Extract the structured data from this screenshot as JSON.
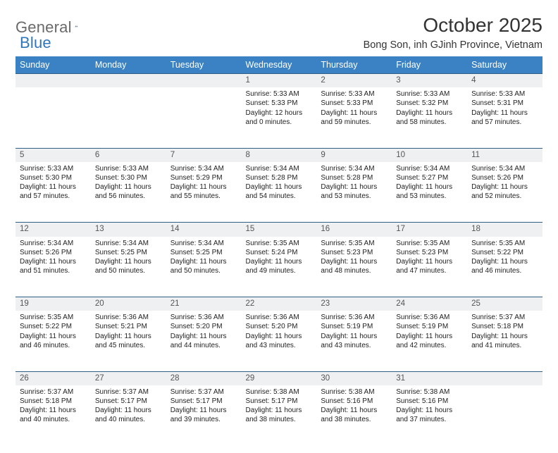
{
  "brand": {
    "name1": "General",
    "name2": "Blue"
  },
  "title": "October 2025",
  "location": "Bong Son, inh GJinh Province, Vietnam",
  "colors": {
    "header_bg": "#3b82c4",
    "header_text": "#ffffff",
    "daynum_bg": "#eef0f1",
    "daynum_border": "#2f5e86",
    "logo_gray": "#6a6a6a",
    "logo_blue": "#2f76bb"
  },
  "dayHeaders": [
    "Sunday",
    "Monday",
    "Tuesday",
    "Wednesday",
    "Thursday",
    "Friday",
    "Saturday"
  ],
  "weeks": [
    {
      "nums": [
        "",
        "",
        "",
        "1",
        "2",
        "3",
        "4"
      ],
      "cells": [
        {
          "lines": []
        },
        {
          "lines": []
        },
        {
          "lines": []
        },
        {
          "lines": [
            "Sunrise: 5:33 AM",
            "Sunset: 5:33 PM",
            "Daylight: 12 hours",
            "and 0 minutes."
          ]
        },
        {
          "lines": [
            "Sunrise: 5:33 AM",
            "Sunset: 5:33 PM",
            "Daylight: 11 hours",
            "and 59 minutes."
          ]
        },
        {
          "lines": [
            "Sunrise: 5:33 AM",
            "Sunset: 5:32 PM",
            "Daylight: 11 hours",
            "and 58 minutes."
          ]
        },
        {
          "lines": [
            "Sunrise: 5:33 AM",
            "Sunset: 5:31 PM",
            "Daylight: 11 hours",
            "and 57 minutes."
          ]
        }
      ]
    },
    {
      "nums": [
        "5",
        "6",
        "7",
        "8",
        "9",
        "10",
        "11"
      ],
      "cells": [
        {
          "lines": [
            "Sunrise: 5:33 AM",
            "Sunset: 5:30 PM",
            "Daylight: 11 hours",
            "and 57 minutes."
          ]
        },
        {
          "lines": [
            "Sunrise: 5:33 AM",
            "Sunset: 5:30 PM",
            "Daylight: 11 hours",
            "and 56 minutes."
          ]
        },
        {
          "lines": [
            "Sunrise: 5:34 AM",
            "Sunset: 5:29 PM",
            "Daylight: 11 hours",
            "and 55 minutes."
          ]
        },
        {
          "lines": [
            "Sunrise: 5:34 AM",
            "Sunset: 5:28 PM",
            "Daylight: 11 hours",
            "and 54 minutes."
          ]
        },
        {
          "lines": [
            "Sunrise: 5:34 AM",
            "Sunset: 5:28 PM",
            "Daylight: 11 hours",
            "and 53 minutes."
          ]
        },
        {
          "lines": [
            "Sunrise: 5:34 AM",
            "Sunset: 5:27 PM",
            "Daylight: 11 hours",
            "and 53 minutes."
          ]
        },
        {
          "lines": [
            "Sunrise: 5:34 AM",
            "Sunset: 5:26 PM",
            "Daylight: 11 hours",
            "and 52 minutes."
          ]
        }
      ]
    },
    {
      "nums": [
        "12",
        "13",
        "14",
        "15",
        "16",
        "17",
        "18"
      ],
      "cells": [
        {
          "lines": [
            "Sunrise: 5:34 AM",
            "Sunset: 5:26 PM",
            "Daylight: 11 hours",
            "and 51 minutes."
          ]
        },
        {
          "lines": [
            "Sunrise: 5:34 AM",
            "Sunset: 5:25 PM",
            "Daylight: 11 hours",
            "and 50 minutes."
          ]
        },
        {
          "lines": [
            "Sunrise: 5:34 AM",
            "Sunset: 5:25 PM",
            "Daylight: 11 hours",
            "and 50 minutes."
          ]
        },
        {
          "lines": [
            "Sunrise: 5:35 AM",
            "Sunset: 5:24 PM",
            "Daylight: 11 hours",
            "and 49 minutes."
          ]
        },
        {
          "lines": [
            "Sunrise: 5:35 AM",
            "Sunset: 5:23 PM",
            "Daylight: 11 hours",
            "and 48 minutes."
          ]
        },
        {
          "lines": [
            "Sunrise: 5:35 AM",
            "Sunset: 5:23 PM",
            "Daylight: 11 hours",
            "and 47 minutes."
          ]
        },
        {
          "lines": [
            "Sunrise: 5:35 AM",
            "Sunset: 5:22 PM",
            "Daylight: 11 hours",
            "and 46 minutes."
          ]
        }
      ]
    },
    {
      "nums": [
        "19",
        "20",
        "21",
        "22",
        "23",
        "24",
        "25"
      ],
      "cells": [
        {
          "lines": [
            "Sunrise: 5:35 AM",
            "Sunset: 5:22 PM",
            "Daylight: 11 hours",
            "and 46 minutes."
          ]
        },
        {
          "lines": [
            "Sunrise: 5:36 AM",
            "Sunset: 5:21 PM",
            "Daylight: 11 hours",
            "and 45 minutes."
          ]
        },
        {
          "lines": [
            "Sunrise: 5:36 AM",
            "Sunset: 5:20 PM",
            "Daylight: 11 hours",
            "and 44 minutes."
          ]
        },
        {
          "lines": [
            "Sunrise: 5:36 AM",
            "Sunset: 5:20 PM",
            "Daylight: 11 hours",
            "and 43 minutes."
          ]
        },
        {
          "lines": [
            "Sunrise: 5:36 AM",
            "Sunset: 5:19 PM",
            "Daylight: 11 hours",
            "and 43 minutes."
          ]
        },
        {
          "lines": [
            "Sunrise: 5:36 AM",
            "Sunset: 5:19 PM",
            "Daylight: 11 hours",
            "and 42 minutes."
          ]
        },
        {
          "lines": [
            "Sunrise: 5:37 AM",
            "Sunset: 5:18 PM",
            "Daylight: 11 hours",
            "and 41 minutes."
          ]
        }
      ]
    },
    {
      "nums": [
        "26",
        "27",
        "28",
        "29",
        "30",
        "31",
        ""
      ],
      "cells": [
        {
          "lines": [
            "Sunrise: 5:37 AM",
            "Sunset: 5:18 PM",
            "Daylight: 11 hours",
            "and 40 minutes."
          ]
        },
        {
          "lines": [
            "Sunrise: 5:37 AM",
            "Sunset: 5:17 PM",
            "Daylight: 11 hours",
            "and 40 minutes."
          ]
        },
        {
          "lines": [
            "Sunrise: 5:37 AM",
            "Sunset: 5:17 PM",
            "Daylight: 11 hours",
            "and 39 minutes."
          ]
        },
        {
          "lines": [
            "Sunrise: 5:38 AM",
            "Sunset: 5:17 PM",
            "Daylight: 11 hours",
            "and 38 minutes."
          ]
        },
        {
          "lines": [
            "Sunrise: 5:38 AM",
            "Sunset: 5:16 PM",
            "Daylight: 11 hours",
            "and 38 minutes."
          ]
        },
        {
          "lines": [
            "Sunrise: 5:38 AM",
            "Sunset: 5:16 PM",
            "Daylight: 11 hours",
            "and 37 minutes."
          ]
        },
        {
          "lines": []
        }
      ]
    }
  ]
}
